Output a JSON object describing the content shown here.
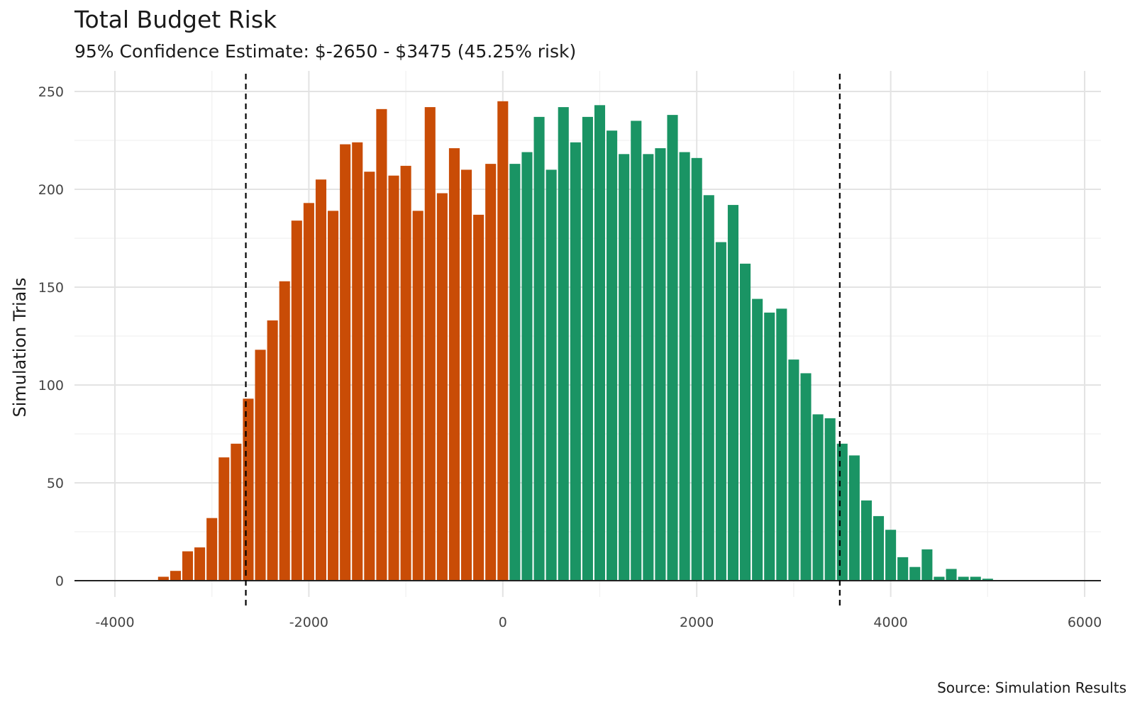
{
  "chart_data": {
    "type": "bar",
    "title": "Total Budget Risk",
    "subtitle": "95% Confidence Estimate: $-2650 - $3475 (45.25% risk)",
    "xlabel": "",
    "ylabel": "Simulation Trials",
    "caption": "Source: Simulation Results",
    "xlim": [
      -4000,
      6000
    ],
    "ylim": [
      0,
      250
    ],
    "x_ticks": [
      -4000,
      -2000,
      0,
      2000,
      4000,
      6000
    ],
    "x_tick_labels": [
      "-4000",
      "-2000",
      "0",
      "2000",
      "4000",
      "6000"
    ],
    "y_ticks": [
      0,
      50,
      100,
      150,
      200,
      250
    ],
    "y_tick_labels": [
      "0",
      "50",
      "100",
      "150",
      "200",
      "250"
    ],
    "bin_width": 125,
    "grid": true,
    "reference_lines": [
      {
        "x": -2650,
        "style": "dashed",
        "color": "#000000"
      },
      {
        "x": 3475,
        "style": "dashed",
        "color": "#000000"
      }
    ],
    "series": [
      {
        "color": "#c94c06",
        "x": [
          -3500,
          -3375,
          -3250,
          -3125,
          -3000,
          -2875,
          -2750,
          -2625,
          -2500,
          -2375,
          -2250,
          -2125,
          -2000,
          -1875,
          -1750,
          -1625,
          -1500,
          -1375,
          -1250,
          -1125,
          -1000,
          -875,
          -750,
          -625,
          -500,
          -375,
          -250,
          -125,
          0
        ],
        "values": [
          2,
          5,
          15,
          17,
          32,
          63,
          70,
          93,
          118,
          133,
          153,
          184,
          193,
          205,
          189,
          223,
          224,
          209,
          241,
          207,
          212,
          189,
          242,
          198,
          221,
          210,
          187,
          213,
          245
        ]
      },
      {
        "color": "#1a9464",
        "x": [
          125,
          250,
          375,
          500,
          625,
          750,
          875,
          1000,
          1125,
          1250,
          1375,
          1500,
          1625,
          1750,
          1875,
          2000,
          2125,
          2250,
          2375,
          2500,
          2625,
          2750,
          2875,
          3000,
          3125,
          3250,
          3375,
          3500,
          3625,
          3750,
          3875,
          4000,
          4125,
          4250,
          4375,
          4500,
          4625,
          4750,
          4875,
          5000
        ],
        "values": [
          213,
          219,
          237,
          210,
          242,
          224,
          237,
          243,
          230,
          218,
          235,
          218,
          221,
          238,
          219,
          216,
          197,
          173,
          192,
          162,
          144,
          137,
          139,
          113,
          106,
          85,
          83,
          70,
          64,
          41,
          33,
          26,
          12,
          7,
          16,
          2,
          6,
          2,
          2,
          1
        ]
      }
    ]
  }
}
